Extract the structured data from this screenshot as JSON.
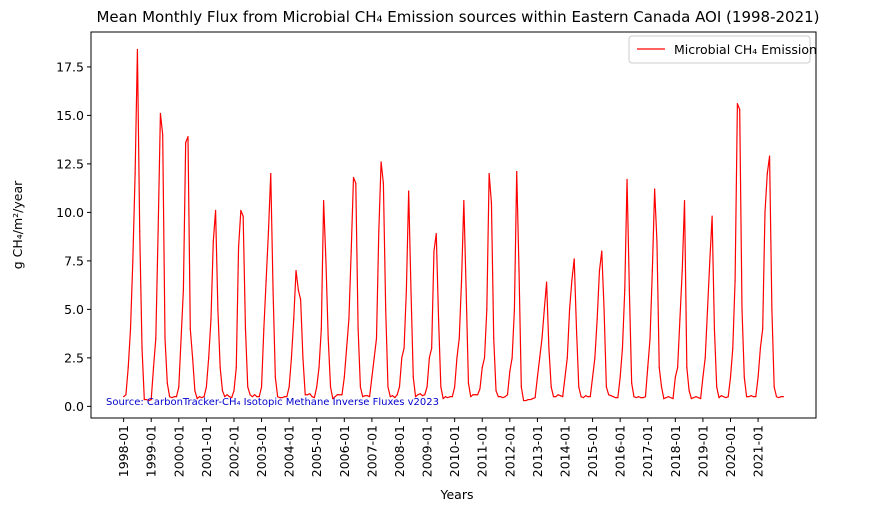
{
  "colors": {
    "series": "#ff0000",
    "source_note": "#0000cc"
  },
  "chart_data": {
    "type": "line",
    "title": "Mean Monthly Flux from Microbial CH₄ Emission sources within Eastern Canada AOI (1998-2021)",
    "xlabel": "Years",
    "ylabel": "g CH₄/m²/year",
    "ylim": [
      -0.6,
      19.3
    ],
    "yticks": [
      "0.0",
      "2.5",
      "5.0",
      "7.5",
      "10.0",
      "12.5",
      "15.0",
      "17.5"
    ],
    "xticks": [
      "1998-01",
      "1999-01",
      "2000-01",
      "2001-01",
      "2002-01",
      "2003-01",
      "2004-01",
      "2005-01",
      "2006-01",
      "2007-01",
      "2008-01",
      "2009-01",
      "2010-01",
      "2011-01",
      "2012-01",
      "2013-01",
      "2014-01",
      "2015-01",
      "2016-01",
      "2017-01",
      "2018-01",
      "2019-01",
      "2020-01",
      "2021-01"
    ],
    "x_start": "1998-01",
    "x_end": "2021-12",
    "grid": false,
    "legend_position": "top-right",
    "source_note": "Source: CarbonTracker-CH₄ Isotopic Methane Inverse Fluxes v2023",
    "series": [
      {
        "name": "Microbial CH₄ Emission",
        "values": [
          [
            0.5,
            0.6,
            2.0,
            4.0,
            7.5,
            12.0,
            18.4,
            9.0,
            3.0,
            0.35,
            0.35,
            0.3
          ],
          [
            0.35,
            2.0,
            3.5,
            9.0,
            15.1,
            14.0,
            3.5,
            1.2,
            0.5,
            0.45,
            0.5,
            0.5
          ],
          [
            1.0,
            3.5,
            6.0,
            13.6,
            13.9,
            4.0,
            2.5,
            0.8,
            0.4,
            0.5,
            0.45,
            0.5
          ],
          [
            1.0,
            2.5,
            4.5,
            8.5,
            10.1,
            5.0,
            2.0,
            0.8,
            0.5,
            0.6,
            0.5,
            0.45
          ],
          [
            0.8,
            2.0,
            8.2,
            10.1,
            9.8,
            4.0,
            1.0,
            0.6,
            0.5,
            0.6,
            0.5,
            0.5
          ],
          [
            1.0,
            4.0,
            6.5,
            9.0,
            12.0,
            6.0,
            1.5,
            0.5,
            0.45,
            0.45,
            0.5,
            0.5
          ],
          [
            1.0,
            2.5,
            4.5,
            7.0,
            6.0,
            5.5,
            2.5,
            0.6,
            0.6,
            0.65,
            0.5,
            0.45
          ],
          [
            1.0,
            2.0,
            4.0,
            10.6,
            7.5,
            3.5,
            1.0,
            0.4,
            0.5,
            0.6,
            0.6,
            0.6
          ],
          [
            1.5,
            3.0,
            4.5,
            8.0,
            11.8,
            11.5,
            4.0,
            1.0,
            0.5,
            0.55,
            0.55,
            0.5
          ],
          [
            1.5,
            2.5,
            3.5,
            9.0,
            12.6,
            11.5,
            5.0,
            1.0,
            0.5,
            0.55,
            0.45,
            0.6
          ],
          [
            1.0,
            2.5,
            3.0,
            6.0,
            11.1,
            6.0,
            1.5,
            0.5,
            0.6,
            0.65,
            0.55,
            0.6
          ],
          [
            1.0,
            2.5,
            3.0,
            8.0,
            8.9,
            4.5,
            1.0,
            0.4,
            0.5,
            0.45,
            0.5,
            0.5
          ],
          [
            1.0,
            2.5,
            3.5,
            6.5,
            10.6,
            6.0,
            1.2,
            0.5,
            0.6,
            0.6,
            0.6,
            0.9
          ],
          [
            2.0,
            2.5,
            5.0,
            12.0,
            10.5,
            3.5,
            0.8,
            0.5,
            0.5,
            0.45,
            0.5,
            0.6
          ],
          [
            1.8,
            2.5,
            5.0,
            12.1,
            7.0,
            1.0,
            0.3,
            0.3,
            0.35,
            0.35,
            0.4,
            0.45
          ],
          [
            1.5,
            2.5,
            3.5,
            5.0,
            6.4,
            3.0,
            1.0,
            0.5,
            0.5,
            0.6,
            0.55,
            0.5
          ],
          [
            1.5,
            2.5,
            5.0,
            6.5,
            7.6,
            4.0,
            1.0,
            0.5,
            0.45,
            0.55,
            0.5,
            0.5
          ],
          [
            1.5,
            2.5,
            4.5,
            7.0,
            8.0,
            5.0,
            1.0,
            0.6,
            0.55,
            0.5,
            0.45,
            0.45
          ],
          [
            1.5,
            3.0,
            6.0,
            11.7,
            6.0,
            1.2,
            0.5,
            0.45,
            0.5,
            0.45,
            0.45,
            0.5
          ],
          [
            2.0,
            3.5,
            7.0,
            11.2,
            8.5,
            2.0,
            1.0,
            0.4,
            0.45,
            0.5,
            0.45,
            0.4
          ],
          [
            1.5,
            2.0,
            4.5,
            7.0,
            10.6,
            2.0,
            0.8,
            0.4,
            0.45,
            0.5,
            0.45,
            0.4
          ],
          [
            1.5,
            2.5,
            5.0,
            7.5,
            9.8,
            4.0,
            1.0,
            0.45,
            0.55,
            0.5,
            0.45,
            0.5
          ],
          [
            1.5,
            3.0,
            6.5,
            15.6,
            15.3,
            5.0,
            1.5,
            0.5,
            0.5,
            0.55,
            0.5,
            0.5
          ],
          [
            1.5,
            3.0,
            4.0,
            10.0,
            12.0,
            12.9,
            5.0,
            1.0,
            0.5,
            0.45,
            0.5,
            0.5
          ]
        ]
      }
    ]
  }
}
